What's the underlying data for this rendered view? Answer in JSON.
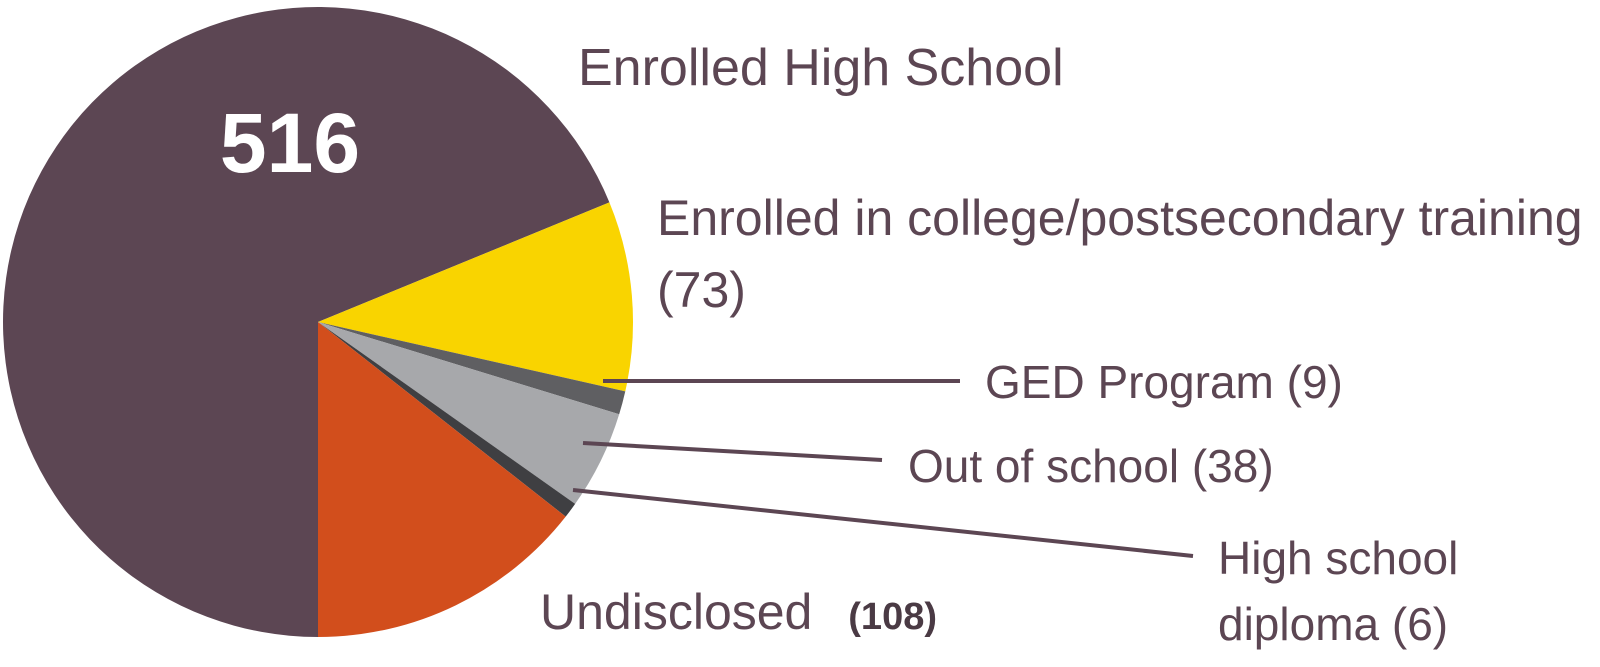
{
  "chart_data": {
    "type": "pie",
    "categories": [
      "Enrolled High School",
      "Enrolled in college/postsecondary training",
      "GED Program",
      "Out of school",
      "High school diploma",
      "Undisclosed"
    ],
    "values": [
      516,
      73,
      9,
      38,
      6,
      108
    ],
    "value_labels": [
      "516",
      "(73)",
      "(9)",
      "(38)",
      "(6)",
      "(108)"
    ],
    "colors": [
      "#5c4653",
      "#f9d400",
      "#5f5f62",
      "#a7a8ab",
      "#3f3f42",
      "#d24e1c"
    ]
  }
}
